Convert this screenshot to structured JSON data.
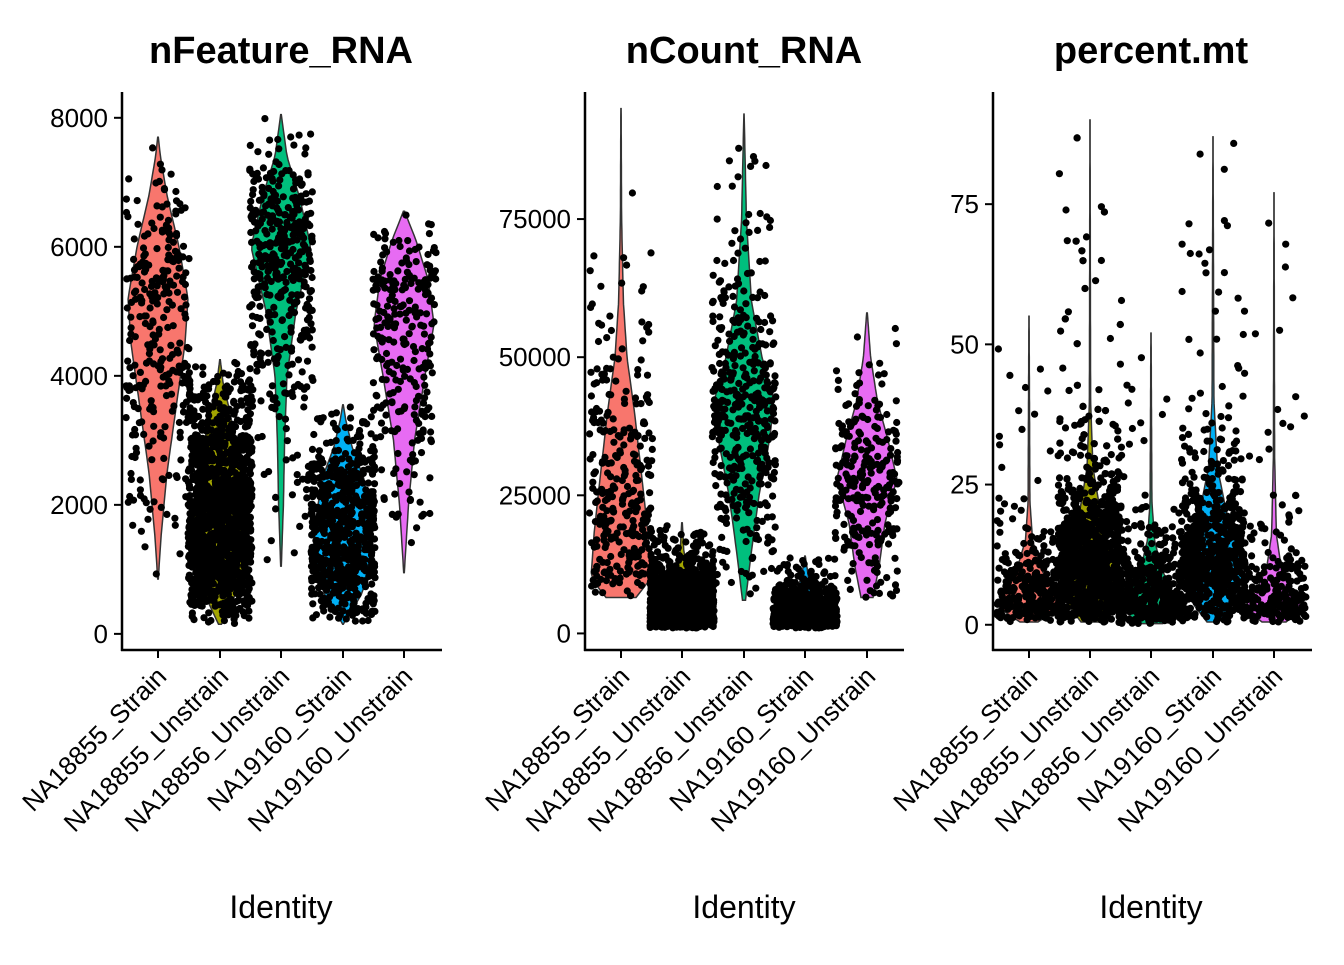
{
  "chart_data": [
    {
      "type": "violin",
      "title": "nFeature_RNA",
      "xlabel": "Identity",
      "ylabel": "",
      "ylim": [
        -250,
        8400
      ],
      "yticks": [
        0,
        2000,
        4000,
        6000,
        8000
      ],
      "ytick_labels": [
        "0",
        "2000",
        "4000",
        "6000",
        "8000"
      ],
      "categories": [
        "NA18855_Strain",
        "NA18855_Unstrain",
        "NA18856_Unstrain",
        "NA19160_Strain",
        "NA19160_Unstrain"
      ],
      "groups": [
        {
          "name": "NA18855_Strain",
          "color": "#F8766D",
          "min": 850,
          "max": 7700,
          "profile": [
            [
              850,
              0.01
            ],
            [
              1500,
              0.1
            ],
            [
              2500,
              0.3
            ],
            [
              3500,
              0.6
            ],
            [
              4500,
              0.9
            ],
            [
              5200,
              1.0
            ],
            [
              6000,
              0.7
            ],
            [
              6800,
              0.3
            ],
            [
              7400,
              0.08
            ],
            [
              7700,
              0.01
            ]
          ],
          "n": 280
        },
        {
          "name": "NA18855_Unstrain",
          "color": "#A3A500",
          "min": 150,
          "max": 4250,
          "profile": [
            [
              150,
              0.05
            ],
            [
              700,
              0.6
            ],
            [
              1200,
              1.0
            ],
            [
              2000,
              0.9
            ],
            [
              2800,
              0.6
            ],
            [
              3500,
              0.3
            ],
            [
              3900,
              0.1
            ],
            [
              4250,
              0.01
            ]
          ],
          "n": 1300
        },
        {
          "name": "NA18856_Unstrain",
          "color": "#00BF7D",
          "min": 1050,
          "max": 8050,
          "profile": [
            [
              1050,
              0.01
            ],
            [
              2000,
              0.08
            ],
            [
              3000,
              0.12
            ],
            [
              4000,
              0.2
            ],
            [
              5000,
              0.5
            ],
            [
              6000,
              1.0
            ],
            [
              6800,
              0.6
            ],
            [
              7400,
              0.2
            ],
            [
              8050,
              0.01
            ]
          ],
          "n": 420
        },
        {
          "name": "NA19160_Strain",
          "color": "#00B0F6",
          "min": 150,
          "max": 3550,
          "profile": [
            [
              150,
              0.01
            ],
            [
              600,
              0.6
            ],
            [
              1100,
              1.0
            ],
            [
              1800,
              0.9
            ],
            [
              2400,
              0.7
            ],
            [
              2900,
              0.3
            ],
            [
              3300,
              0.1
            ],
            [
              3550,
              0.01
            ]
          ],
          "n": 650
        },
        {
          "name": "NA19160_Unstrain",
          "color": "#E76BF3",
          "min": 950,
          "max": 6550,
          "profile": [
            [
              950,
              0.01
            ],
            [
              2000,
              0.15
            ],
            [
              3000,
              0.35
            ],
            [
              4000,
              0.7
            ],
            [
              4800,
              1.0
            ],
            [
              5500,
              0.8
            ],
            [
              6100,
              0.4
            ],
            [
              6550,
              0.02
            ]
          ],
          "n": 260
        }
      ]
    },
    {
      "type": "violin",
      "title": "nCount_RNA",
      "xlabel": "Identity",
      "ylabel": "",
      "ylim": [
        -3000,
        98000
      ],
      "yticks": [
        0,
        25000,
        50000,
        75000
      ],
      "ytick_labels": [
        "0",
        "25000",
        "50000",
        "75000"
      ],
      "categories": [
        "NA18855_Strain",
        "NA18855_Unstrain",
        "NA18856_Unstrain",
        "NA19160_Strain",
        "NA19160_Unstrain"
      ],
      "groups": [
        {
          "name": "NA18855_Strain",
          "color": "#F8766D",
          "min": 6500,
          "max": 95000,
          "profile": [
            [
              6500,
              0.5
            ],
            [
              10000,
              1.0
            ],
            [
              18000,
              0.9
            ],
            [
              28000,
              0.7
            ],
            [
              40000,
              0.45
            ],
            [
              50000,
              0.2
            ],
            [
              60000,
              0.08
            ],
            [
              75000,
              0.02
            ],
            [
              95000,
              0.005
            ]
          ],
          "n": 300
        },
        {
          "name": "NA18855_Unstrain",
          "color": "#A3A500",
          "min": 1000,
          "max": 20000,
          "profile": [
            [
              1000,
              0.3
            ],
            [
              2500,
              1.0
            ],
            [
              5000,
              0.8
            ],
            [
              8000,
              0.5
            ],
            [
              11000,
              0.2
            ],
            [
              15000,
              0.06
            ],
            [
              20000,
              0.01
            ]
          ],
          "n": 1300
        },
        {
          "name": "NA18856_Unstrain",
          "color": "#00BF7D",
          "min": 6000,
          "max": 94000,
          "profile": [
            [
              6000,
              0.05
            ],
            [
              15000,
              0.25
            ],
            [
              25000,
              0.5
            ],
            [
              35000,
              0.85
            ],
            [
              42000,
              1.0
            ],
            [
              50000,
              0.6
            ],
            [
              60000,
              0.25
            ],
            [
              75000,
              0.08
            ],
            [
              94000,
              0.005
            ]
          ],
          "n": 420
        },
        {
          "name": "NA19160_Strain",
          "color": "#00B0F6",
          "min": 1000,
          "max": 14000,
          "profile": [
            [
              1000,
              0.3
            ],
            [
              2500,
              1.0
            ],
            [
              4500,
              0.8
            ],
            [
              7000,
              0.4
            ],
            [
              10000,
              0.12
            ],
            [
              14000,
              0.01
            ]
          ],
          "n": 650
        },
        {
          "name": "NA19160_Unstrain",
          "color": "#E76BF3",
          "min": 6500,
          "max": 58000,
          "profile": [
            [
              6500,
              0.2
            ],
            [
              12000,
              0.4
            ],
            [
              20000,
              0.6
            ],
            [
              28000,
              1.0
            ],
            [
              35000,
              0.7
            ],
            [
              42000,
              0.35
            ],
            [
              50000,
              0.12
            ],
            [
              58000,
              0.01
            ]
          ],
          "n": 260
        }
      ]
    },
    {
      "type": "violin",
      "title": "percent.mt",
      "xlabel": "Identity",
      "ylabel": "",
      "ylim": [
        -4.5,
        95
      ],
      "yticks": [
        0,
        25,
        50,
        75
      ],
      "ytick_labels": [
        "0",
        "25",
        "50",
        "75"
      ],
      "categories": [
        "NA18855_Strain",
        "NA18855_Unstrain",
        "NA18856_Unstrain",
        "NA19160_Strain",
        "NA19160_Unstrain"
      ],
      "groups": [
        {
          "name": "NA18855_Strain",
          "color": "#F8766D",
          "min": 0.5,
          "max": 55,
          "profile": [
            [
              0.5,
              0.3
            ],
            [
              3,
              1.0
            ],
            [
              6,
              0.8
            ],
            [
              10,
              0.4
            ],
            [
              15,
              0.12
            ],
            [
              22,
              0.03
            ],
            [
              55,
              0.003
            ]
          ],
          "n": 300
        },
        {
          "name": "NA18855_Unstrain",
          "color": "#A3A500",
          "min": 0.5,
          "max": 90,
          "profile": [
            [
              0.5,
              0.3
            ],
            [
              4,
              0.8
            ],
            [
              8,
              1.0
            ],
            [
              13,
              0.7
            ],
            [
              20,
              0.35
            ],
            [
              28,
              0.1
            ],
            [
              40,
              0.02
            ],
            [
              90,
              0.002
            ]
          ],
          "n": 1300
        },
        {
          "name": "NA18856_Unstrain",
          "color": "#00BF7D",
          "min": 0.2,
          "max": 52,
          "profile": [
            [
              0.2,
              0.4
            ],
            [
              3,
              1.0
            ],
            [
              6,
              0.7
            ],
            [
              10,
              0.35
            ],
            [
              15,
              0.12
            ],
            [
              22,
              0.03
            ],
            [
              52,
              0.003
            ]
          ],
          "n": 420
        },
        {
          "name": "NA19160_Strain",
          "color": "#00B0F6",
          "min": 0.5,
          "max": 87,
          "profile": [
            [
              0.5,
              0.2
            ],
            [
              4,
              0.7
            ],
            [
              9,
              1.0
            ],
            [
              14,
              0.8
            ],
            [
              20,
              0.45
            ],
            [
              28,
              0.15
            ],
            [
              40,
              0.03
            ],
            [
              87,
              0.002
            ]
          ],
          "n": 650
        },
        {
          "name": "NA19160_Unstrain",
          "color": "#E76BF3",
          "min": 0.5,
          "max": 77,
          "profile": [
            [
              0.5,
              0.4
            ],
            [
              3,
              1.0
            ],
            [
              6,
              0.6
            ],
            [
              10,
              0.25
            ],
            [
              16,
              0.08
            ],
            [
              30,
              0.02
            ],
            [
              77,
              0.002
            ]
          ],
          "n": 260
        }
      ]
    }
  ]
}
